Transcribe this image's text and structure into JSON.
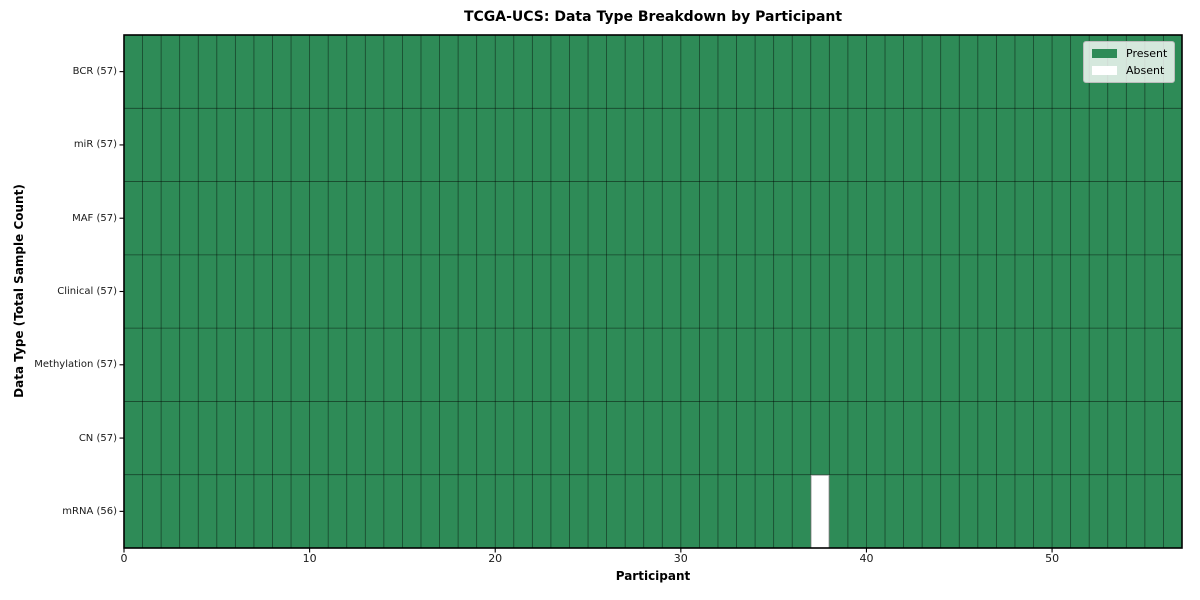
{
  "chart_data": {
    "type": "heatmap",
    "title": "TCGA-UCS: Data Type Breakdown by Participant",
    "xlabel": "Participant",
    "ylabel": "Data Type (Total Sample Count)",
    "n_participants": 57,
    "x_range": [
      0,
      57
    ],
    "x_ticks": [
      0,
      10,
      20,
      30,
      40,
      50
    ],
    "rows": [
      {
        "label": "BCR (57)",
        "data_type": "BCR",
        "present_count": 57,
        "absent_participants": []
      },
      {
        "label": "miR (57)",
        "data_type": "miR",
        "present_count": 57,
        "absent_participants": []
      },
      {
        "label": "MAF (57)",
        "data_type": "MAF",
        "present_count": 57,
        "absent_participants": []
      },
      {
        "label": "Clinical (57)",
        "data_type": "Clinical",
        "present_count": 57,
        "absent_participants": []
      },
      {
        "label": "Methylation (57)",
        "data_type": "Methylation",
        "present_count": 57,
        "absent_participants": []
      },
      {
        "label": "CN (57)",
        "data_type": "CN",
        "present_count": 57,
        "absent_participants": []
      },
      {
        "label": "mRNA (56)",
        "data_type": "mRNA",
        "present_count": 56,
        "absent_participants": [
          37
        ]
      }
    ],
    "legend": {
      "position": "upper right",
      "entries": [
        {
          "label": "Present",
          "color": "#2e8b57"
        },
        {
          "label": "Absent",
          "color": "#ffffff"
        }
      ]
    },
    "colors": {
      "present": "#2e8b57",
      "absent": "#ffffff",
      "grid_line": "#000000",
      "spine": "#000000"
    },
    "grid": true
  }
}
